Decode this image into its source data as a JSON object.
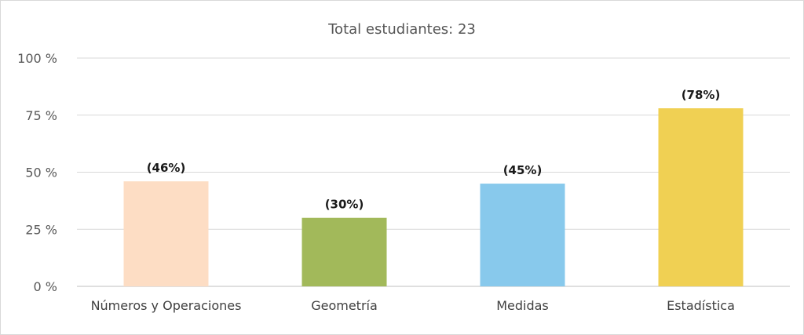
{
  "chart_data": {
    "type": "bar",
    "title": "Total estudiantes: 23",
    "categories": [
      "Números y Operaciones",
      "Geometría",
      "Medidas",
      "Estadística"
    ],
    "values": [
      46,
      30,
      45,
      78
    ],
    "data_labels": [
      "(46%)",
      "(30%)",
      "(45%)",
      "(78%)"
    ],
    "colors": [
      "#FDDDC4",
      "#A2B95A",
      "#88C9EC",
      "#F0D053"
    ],
    "ylim": [
      0,
      100
    ],
    "yticks": [
      0,
      25,
      50,
      75,
      100
    ],
    "ytick_labels": [
      "0 %",
      "25 %",
      "50 %",
      "75 %",
      "100 %"
    ],
    "grid": true,
    "legend": "none",
    "xlabel": "",
    "ylabel": ""
  }
}
